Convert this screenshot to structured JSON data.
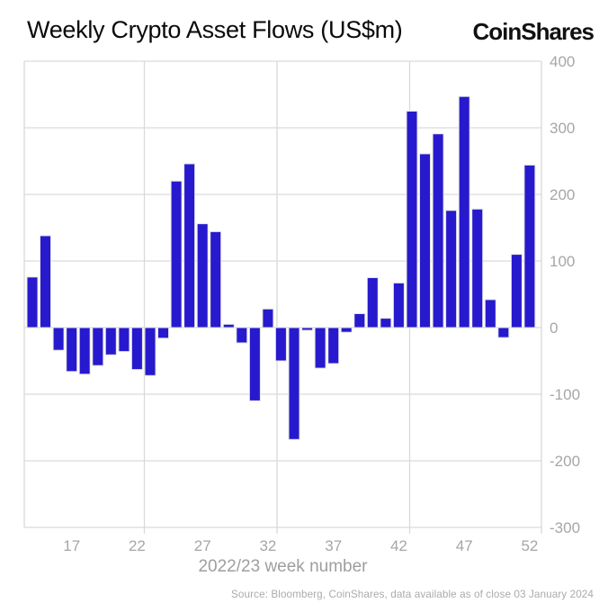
{
  "header": {
    "title": "Weekly Crypto Asset Flows (US$m)",
    "logo": "CoinShares"
  },
  "footer": {
    "source": "Source: Bloomberg, CoinShares, data available as of close 03 January 2024"
  },
  "chart_data": {
    "type": "bar",
    "title": "Weekly Crypto Asset Flows (US$m)",
    "xlabel": "2022/23 week number",
    "ylabel": "",
    "weeks": [
      14,
      15,
      16,
      17,
      18,
      19,
      20,
      21,
      22,
      23,
      24,
      25,
      26,
      27,
      28,
      29,
      30,
      31,
      32,
      33,
      34,
      35,
      36,
      37,
      38,
      39,
      40,
      41,
      42,
      43,
      44,
      45,
      46,
      47,
      48,
      49,
      50,
      51,
      52
    ],
    "values": [
      76,
      138,
      -34,
      -66,
      -70,
      -57,
      -41,
      -36,
      -63,
      -72,
      -16,
      220,
      246,
      156,
      144,
      5,
      -23,
      -110,
      28,
      -50,
      -168,
      -4,
      -61,
      -54,
      -7,
      21,
      75,
      14,
      67,
      325,
      261,
      291,
      176,
      347,
      178,
      42,
      -15,
      110,
      244
    ],
    "x_ticks": [
      17,
      22,
      27,
      32,
      37,
      42,
      47,
      52
    ],
    "y_ticks": [
      400,
      300,
      200,
      100,
      0,
      -100,
      -200,
      -300
    ],
    "ylim": [
      -300,
      400
    ],
    "grid": true,
    "legend": "none",
    "bar_color": "#2619ce",
    "bar_edge_color": "#e3e3e3",
    "grid_color": "#d9d9d9",
    "label_color": "#a6a6a6",
    "axis_title_color": "#9e9e9e"
  }
}
